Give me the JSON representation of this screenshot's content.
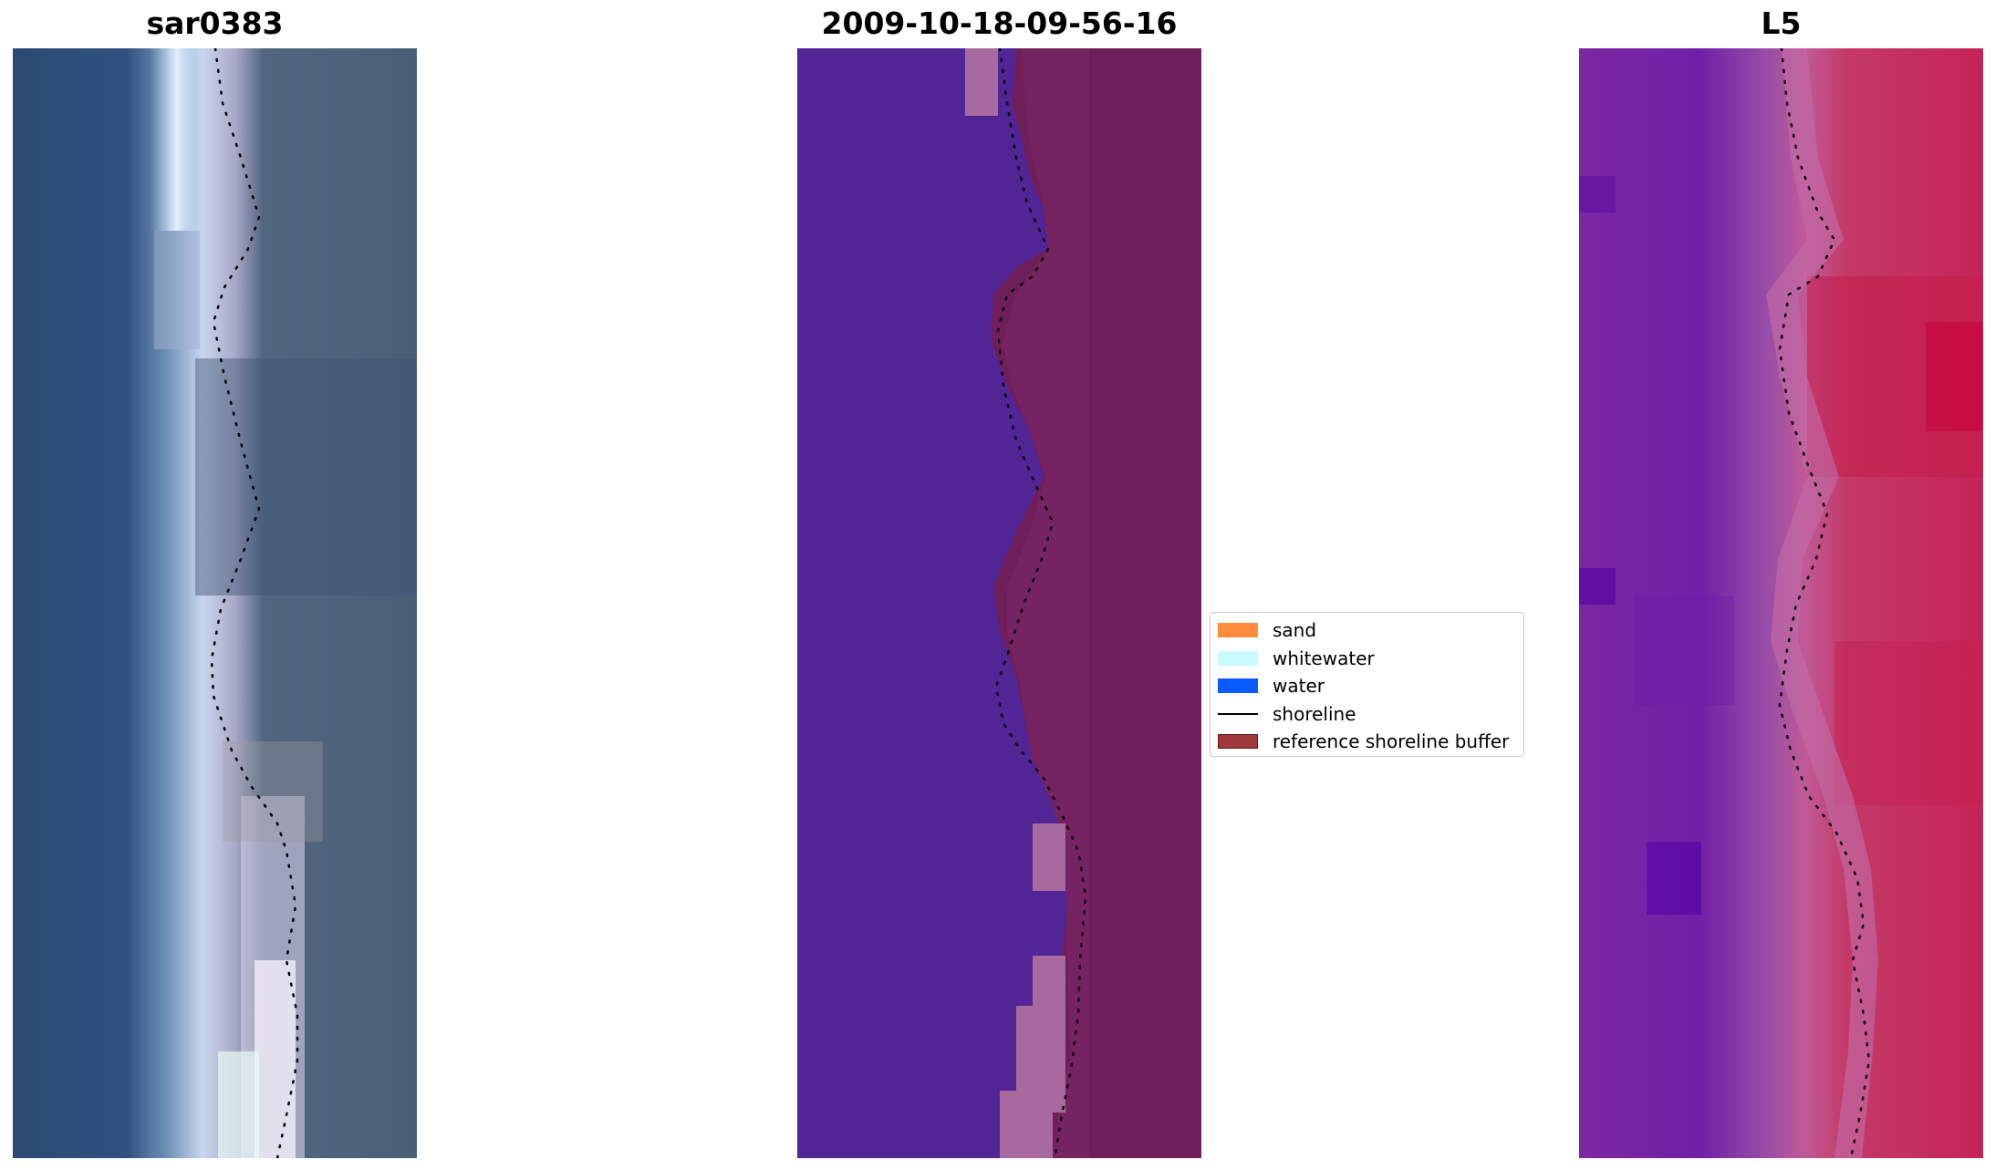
{
  "panels": {
    "left": {
      "title": "sar0383"
    },
    "middle": {
      "title": "2009-10-18-09-56-16"
    },
    "right": {
      "title": "L5"
    }
  },
  "legend": {
    "items": [
      {
        "label": "sand",
        "color": "#ff8c3f",
        "kind": "patch"
      },
      {
        "label": "whitewater",
        "color": "#c8faff",
        "kind": "patch"
      },
      {
        "label": "water",
        "color": "#0a5bff",
        "kind": "patch"
      },
      {
        "label": "shoreline",
        "color": "#000000",
        "kind": "line"
      },
      {
        "label": "reference shoreline buffer",
        "color": "#a0393b",
        "kind": "patch",
        "edge": "#5a1a1a"
      }
    ]
  },
  "colors": {
    "rgb_water": "#2f4e78",
    "rgb_surf": "#e6eefc",
    "rgb_land": "#47607a",
    "class_water": "#522597",
    "class_buffer": "#6e1f5a",
    "class_whitewater": "#a86a9e",
    "index_left": "#7a1faa",
    "index_right": "#c11a4e",
    "shoreline": "#000000"
  }
}
